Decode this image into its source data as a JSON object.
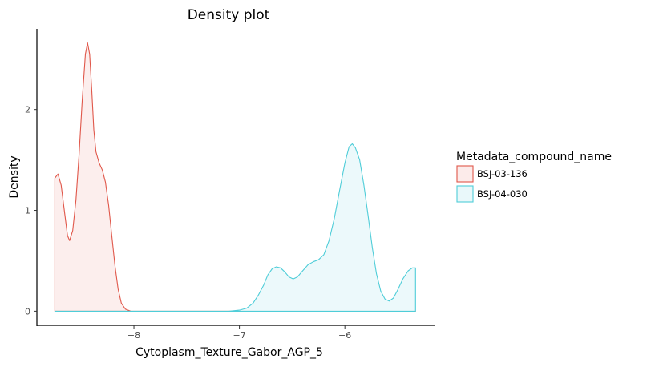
{
  "chart_data": {
    "type": "area",
    "title": "Density plot",
    "xlabel": "Cytoplasm_Texture_Gabor_AGP_5",
    "ylabel": "Density",
    "xlim": [
      -8.92,
      -5.15
    ],
    "ylim": [
      -0.14,
      2.8
    ],
    "xticks": [
      -8,
      -7,
      -6
    ],
    "xtick_labels": [
      "−8",
      "−7",
      "−6"
    ],
    "yticks": [
      0,
      1,
      2
    ],
    "ytick_labels": [
      "0",
      "1",
      "2"
    ],
    "grid": false,
    "legend": {
      "title": "Metadata_compound_name",
      "placement": "right"
    },
    "series": [
      {
        "name": "BSJ-03-136",
        "line_color": "#e0574a",
        "fill_color": "#fcebea",
        "points": [
          [
            -8.75,
            1.32
          ],
          [
            -8.72,
            1.36
          ],
          [
            -8.69,
            1.25
          ],
          [
            -8.66,
            1.0
          ],
          [
            -8.63,
            0.75
          ],
          [
            -8.61,
            0.7
          ],
          [
            -8.58,
            0.8
          ],
          [
            -8.55,
            1.1
          ],
          [
            -8.52,
            1.55
          ],
          [
            -8.49,
            2.1
          ],
          [
            -8.46,
            2.55
          ],
          [
            -8.44,
            2.66
          ],
          [
            -8.42,
            2.55
          ],
          [
            -8.4,
            2.2
          ],
          [
            -8.38,
            1.8
          ],
          [
            -8.36,
            1.58
          ],
          [
            -8.33,
            1.47
          ],
          [
            -8.3,
            1.4
          ],
          [
            -8.27,
            1.28
          ],
          [
            -8.24,
            1.05
          ],
          [
            -8.21,
            0.75
          ],
          [
            -8.18,
            0.45
          ],
          [
            -8.15,
            0.22
          ],
          [
            -8.12,
            0.08
          ],
          [
            -8.08,
            0.02
          ],
          [
            -8.03,
            0.0
          ],
          [
            -7.5,
            0.0
          ],
          [
            -7.0,
            0.0
          ],
          [
            -6.5,
            0.0
          ],
          [
            -6.0,
            0.0
          ],
          [
            -5.6,
            0.0
          ],
          [
            -5.33,
            0.0
          ]
        ]
      },
      {
        "name": "BSJ-04-030",
        "line_color": "#4fcdd8",
        "fill_color": "#e9f8fa",
        "points": [
          [
            -8.75,
            0.0
          ],
          [
            -8.0,
            0.0
          ],
          [
            -7.5,
            0.0
          ],
          [
            -7.1,
            0.0
          ],
          [
            -7.0,
            0.01
          ],
          [
            -6.93,
            0.03
          ],
          [
            -6.87,
            0.08
          ],
          [
            -6.82,
            0.16
          ],
          [
            -6.77,
            0.26
          ],
          [
            -6.73,
            0.36
          ],
          [
            -6.69,
            0.42
          ],
          [
            -6.65,
            0.44
          ],
          [
            -6.61,
            0.43
          ],
          [
            -6.57,
            0.39
          ],
          [
            -6.53,
            0.34
          ],
          [
            -6.49,
            0.32
          ],
          [
            -6.45,
            0.34
          ],
          [
            -6.4,
            0.4
          ],
          [
            -6.35,
            0.46
          ],
          [
            -6.3,
            0.49
          ],
          [
            -6.25,
            0.51
          ],
          [
            -6.2,
            0.56
          ],
          [
            -6.15,
            0.7
          ],
          [
            -6.1,
            0.92
          ],
          [
            -6.05,
            1.2
          ],
          [
            -6.0,
            1.47
          ],
          [
            -5.96,
            1.63
          ],
          [
            -5.93,
            1.66
          ],
          [
            -5.9,
            1.62
          ],
          [
            -5.86,
            1.5
          ],
          [
            -5.82,
            1.25
          ],
          [
            -5.78,
            0.95
          ],
          [
            -5.74,
            0.63
          ],
          [
            -5.7,
            0.37
          ],
          [
            -5.66,
            0.2
          ],
          [
            -5.62,
            0.12
          ],
          [
            -5.58,
            0.1
          ],
          [
            -5.54,
            0.13
          ],
          [
            -5.5,
            0.21
          ],
          [
            -5.45,
            0.32
          ],
          [
            -5.4,
            0.4
          ],
          [
            -5.36,
            0.43
          ],
          [
            -5.33,
            0.43
          ]
        ]
      }
    ]
  }
}
